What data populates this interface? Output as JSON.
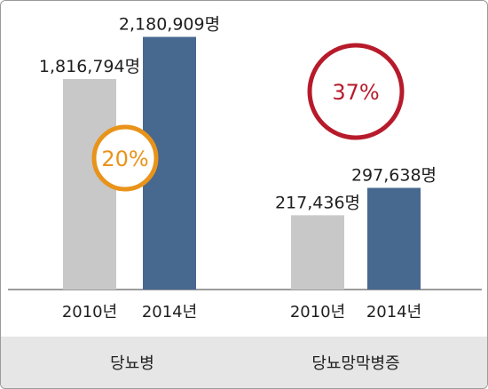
{
  "chart_data": [
    {
      "type": "bar",
      "group_label": "당뇨병",
      "categories": [
        "2010년",
        "2014년"
      ],
      "values": [
        1816794,
        2180909
      ],
      "value_labels": [
        "1,816,794명",
        "2,180,909명"
      ],
      "bar_colors": [
        "#c8c8c9",
        "#47688f"
      ],
      "ylim": [
        0,
        2300000
      ],
      "increase_badge": {
        "text": "20%",
        "color": "#e8931a"
      }
    },
    {
      "type": "bar",
      "group_label": "당뇨망막병증",
      "categories": [
        "2010년",
        "2014년"
      ],
      "values": [
        217436,
        297638
      ],
      "value_labels": [
        "217,436명",
        "297,638명"
      ],
      "bar_colors": [
        "#c8c8c9",
        "#47688f"
      ],
      "ylim": [
        0,
        780000
      ],
      "increase_badge": {
        "text": "37%",
        "color": "#b71b2b"
      }
    }
  ],
  "colors": {
    "axis": "#7a7a7a",
    "footer_band": "#e6e6e7",
    "text": "#1f1f1f"
  }
}
